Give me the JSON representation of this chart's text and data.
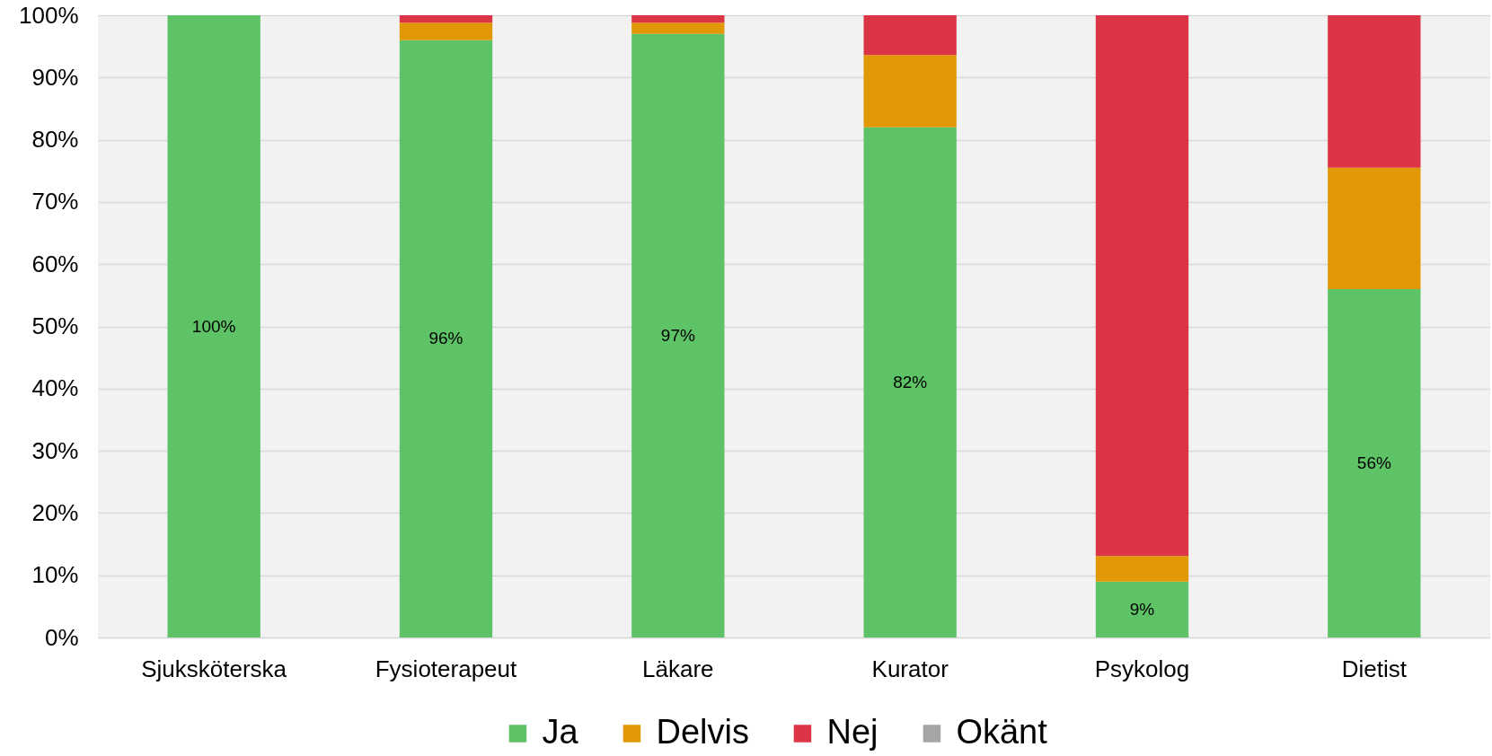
{
  "chart_data": {
    "type": "bar",
    "stacked": true,
    "categories": [
      "Sjuksköterska",
      "Fysioterapeut",
      "Läkare",
      "Kurator",
      "Psykolog",
      "Dietist"
    ],
    "series": [
      {
        "name": "Ja",
        "color": "#5ec266",
        "values": [
          100,
          96,
          97,
          82,
          9,
          56
        ],
        "value_labels": [
          "100%",
          "96%",
          "97%",
          "82%",
          "9%",
          "56%"
        ]
      },
      {
        "name": "Delvis",
        "color": "#e09806",
        "values": [
          0,
          2.8,
          1.8,
          11.6,
          4.1,
          19.5
        ]
      },
      {
        "name": "Nej",
        "color": "#dc3545",
        "values": [
          0,
          1.2,
          1.2,
          6.4,
          86.9,
          24.5
        ]
      },
      {
        "name": "Okänt",
        "color": "#a5a5a5",
        "values": [
          0,
          0,
          0,
          0,
          0,
          0
        ]
      }
    ],
    "ylim": [
      0,
      100
    ],
    "yticks": [
      {
        "value": 0,
        "label": "0%"
      },
      {
        "value": 10,
        "label": "10%"
      },
      {
        "value": 20,
        "label": "20%"
      },
      {
        "value": 30,
        "label": "30%"
      },
      {
        "value": 40,
        "label": "40%"
      },
      {
        "value": 50,
        "label": "50%"
      },
      {
        "value": 60,
        "label": "60%"
      },
      {
        "value": 70,
        "label": "70%"
      },
      {
        "value": 80,
        "label": "80%"
      },
      {
        "value": 90,
        "label": "90%"
      },
      {
        "value": 100,
        "label": "100%"
      }
    ],
    "grid": "y",
    "legend": "bottom"
  }
}
